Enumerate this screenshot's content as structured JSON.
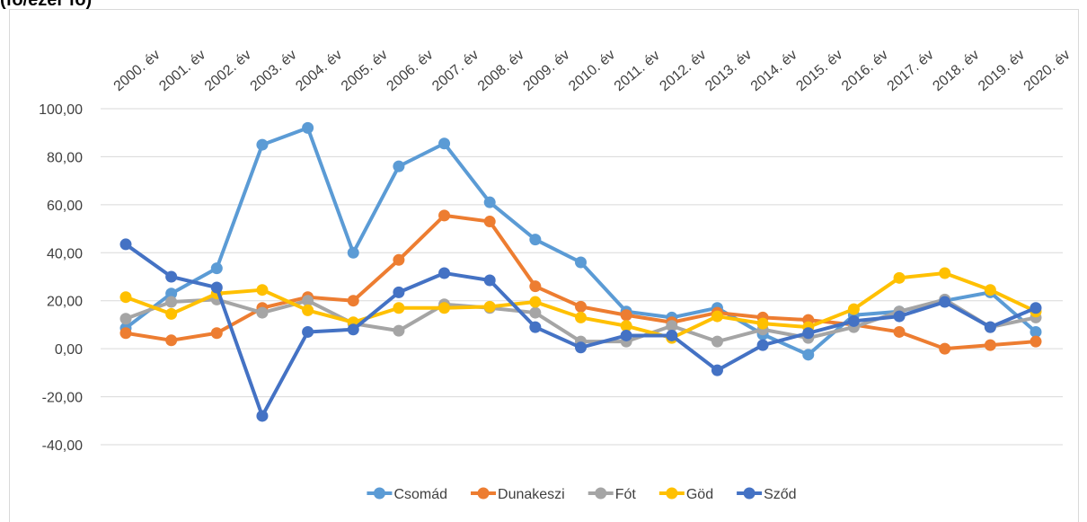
{
  "chart_data": {
    "type": "line",
    "title": "(fő/ezer fő)",
    "categories": [
      "2000. év",
      "2001. év",
      "2002. év",
      "2003. év",
      "2004. év",
      "2005. év",
      "2006. év",
      "2007. év",
      "2008. év",
      "2009. év",
      "2010. év",
      "2011. év",
      "2012. év",
      "2013. év",
      "2014. év",
      "2015. év",
      "2016. év",
      "2017. év",
      "2018. év",
      "2019. év",
      "2020. év"
    ],
    "series": [
      {
        "name": "Csomád",
        "color": "#5b9bd5",
        "values": [
          8.6,
          23,
          33.5,
          85,
          92,
          40,
          76,
          85.5,
          61,
          45.5,
          36,
          15.5,
          13,
          17,
          6,
          -2.5,
          14,
          15.5,
          20,
          23.5,
          7
        ]
      },
      {
        "name": "Dunakeszi",
        "color": "#ed7d31",
        "values": [
          6.5,
          3.5,
          6.5,
          17,
          21.5,
          20,
          37,
          55.5,
          53,
          26,
          17.5,
          14,
          11,
          15,
          13,
          12,
          10,
          7,
          0,
          1.5,
          3
        ]
      },
      {
        "name": "Fót",
        "color": "#a5a5a5",
        "values": [
          12.5,
          19.5,
          20.5,
          15,
          20,
          10.5,
          7.5,
          18.5,
          17,
          15,
          3,
          3,
          9.5,
          3,
          8,
          4.5,
          9,
          15.5,
          20.5,
          9,
          13
        ]
      },
      {
        "name": "Göd",
        "color": "#ffc000",
        "values": [
          21.5,
          14.5,
          23,
          24.5,
          16,
          11,
          17,
          17,
          17.5,
          19.5,
          13,
          9.5,
          4.5,
          13.5,
          10.5,
          9,
          16.5,
          29.5,
          31.5,
          24.5,
          15.5
        ]
      },
      {
        "name": "Sződ",
        "color": "#4472c4",
        "values": [
          43.5,
          30,
          25.5,
          -28,
          7,
          8,
          23.5,
          31.5,
          28.5,
          9,
          0.5,
          5.5,
          5.5,
          -9,
          1.5,
          6.5,
          11.5,
          13.5,
          19.5,
          9,
          17
        ]
      }
    ],
    "ylim": [
      -40,
      100
    ],
    "yticks": [
      {
        "value": -40,
        "label": "-40,00"
      },
      {
        "value": -20,
        "label": "-20,00"
      },
      {
        "value": 0,
        "label": "0,00"
      },
      {
        "value": 20,
        "label": "20,00"
      },
      {
        "value": 40,
        "label": "40,00"
      },
      {
        "value": 60,
        "label": "60,00"
      },
      {
        "value": 80,
        "label": "80,00"
      },
      {
        "value": 100,
        "label": "100,00"
      }
    ],
    "grid": true,
    "legend": "bottom"
  }
}
